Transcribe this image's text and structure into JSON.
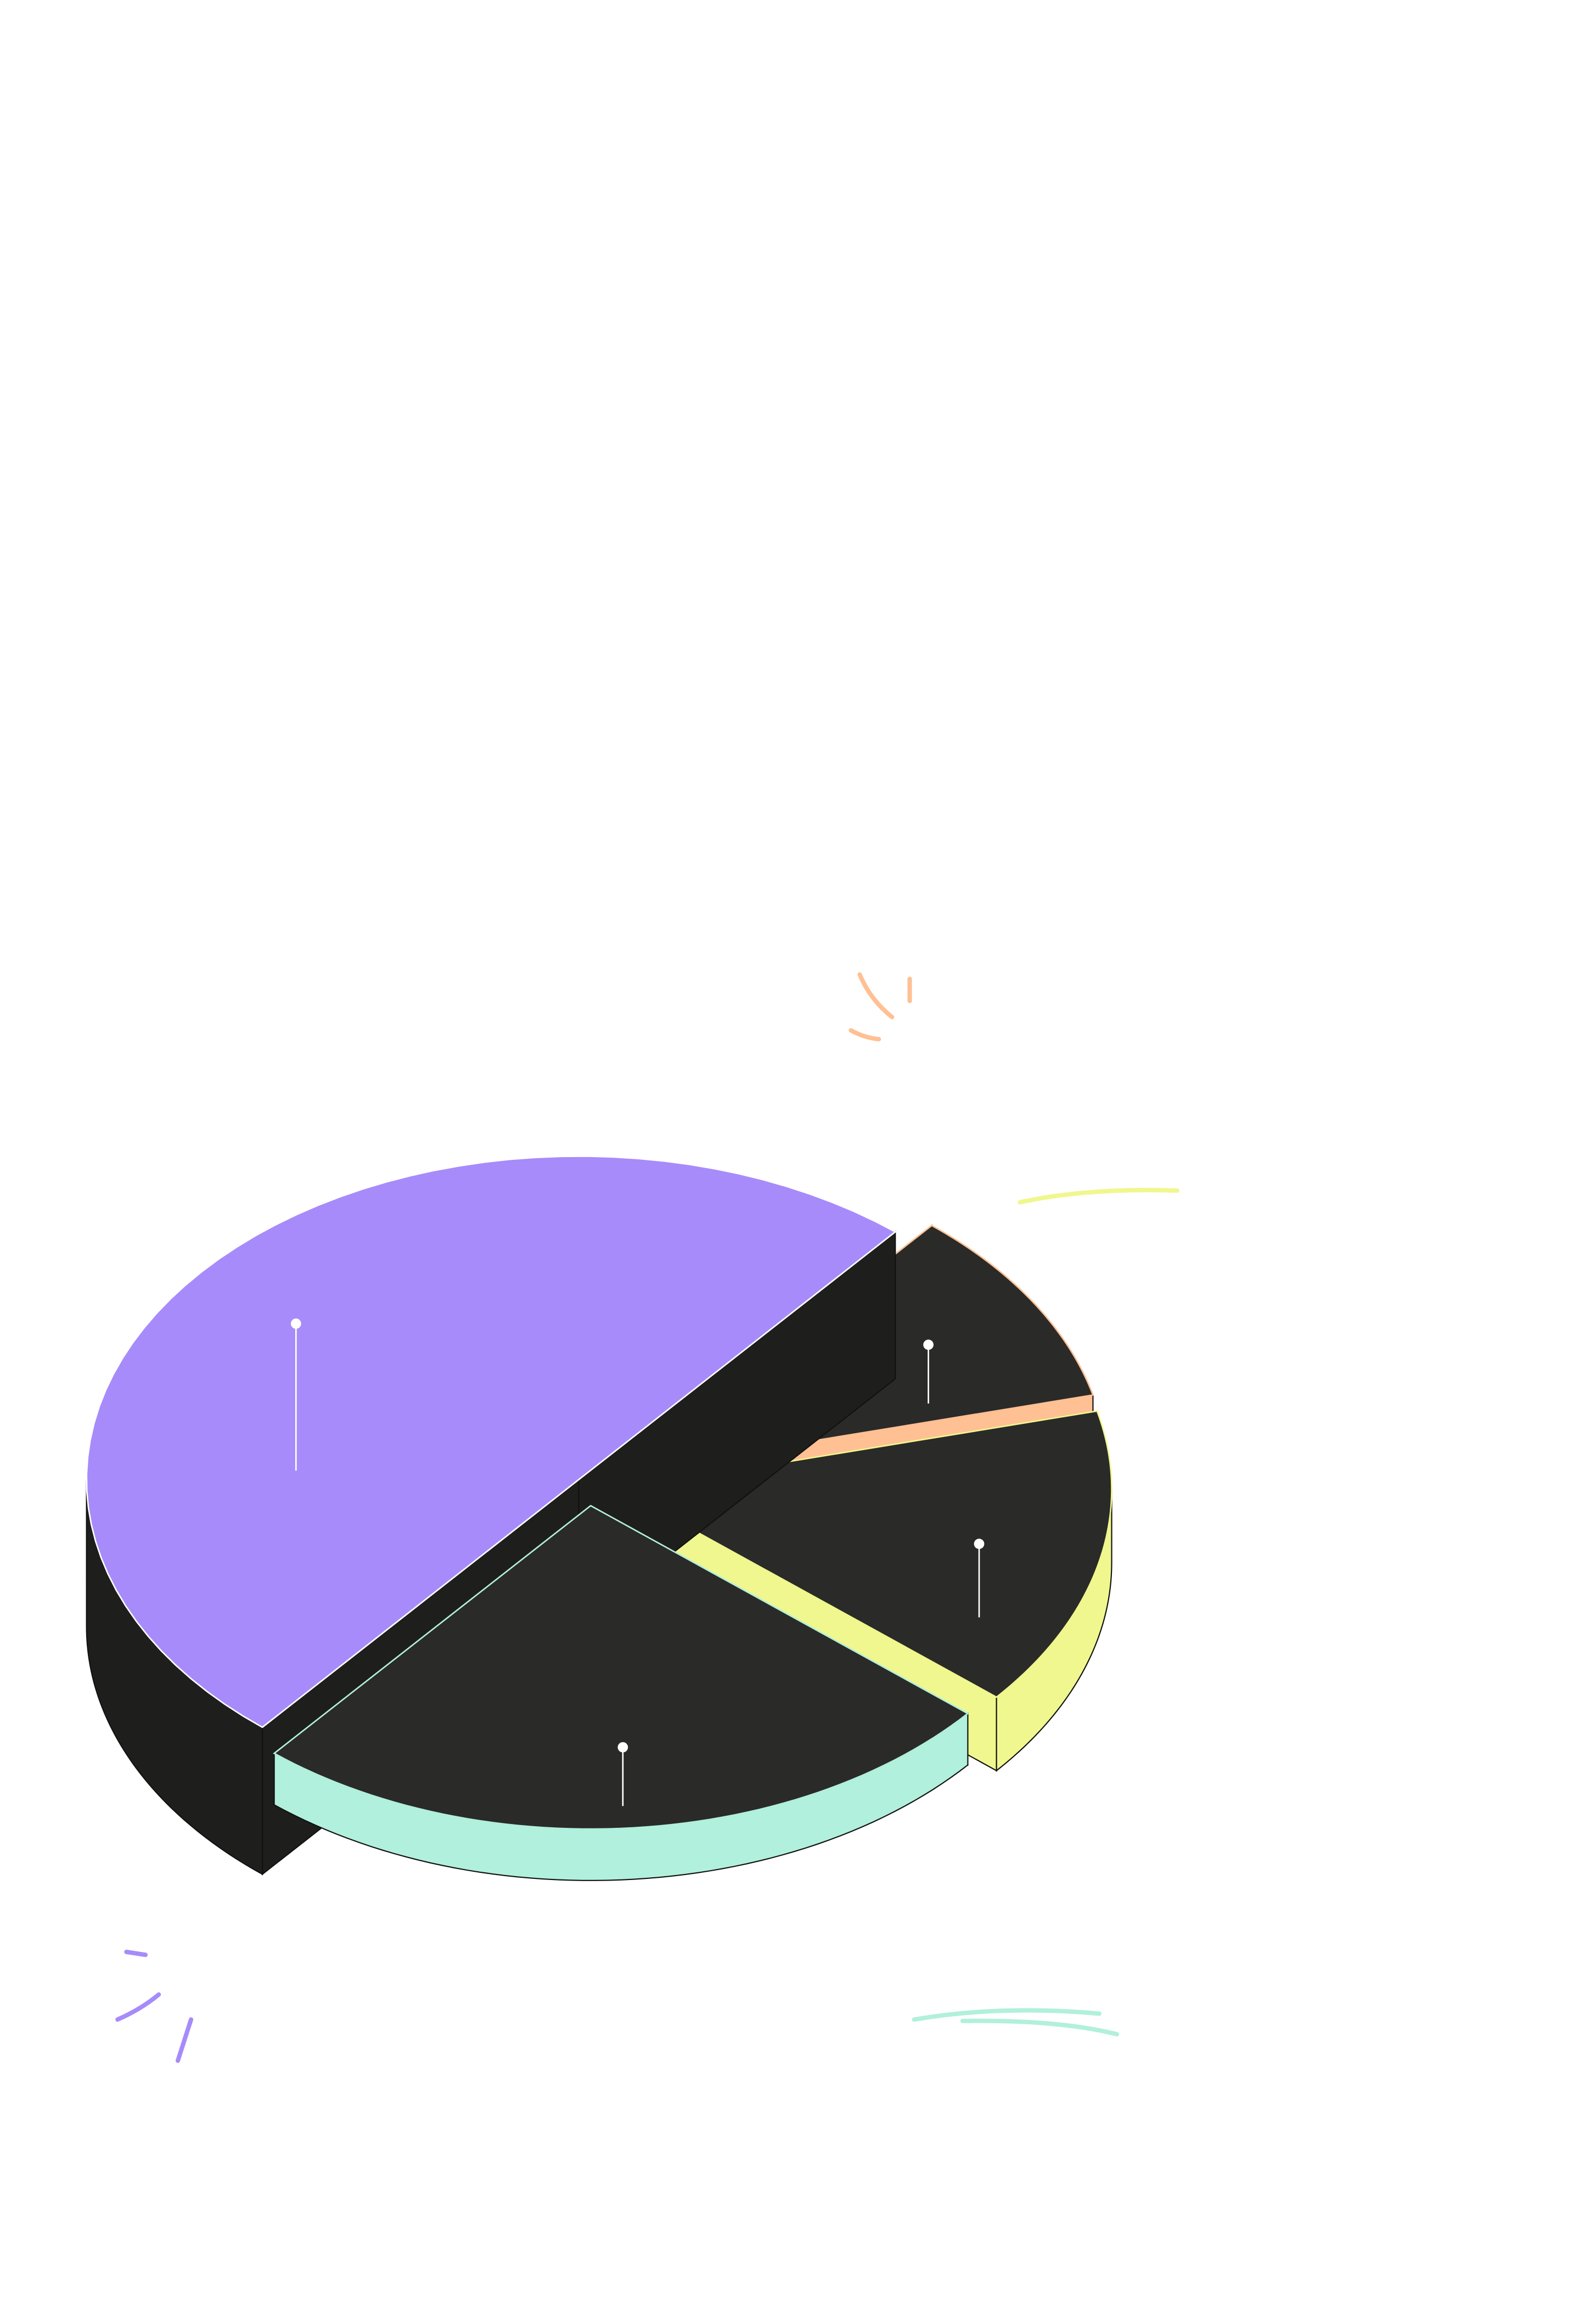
{
  "chart_data": {
    "type": "pie",
    "values": [
      50,
      10,
      15,
      25
    ],
    "colors": [
      "#a78bfa",
      "#ffc093",
      "#f0f78e",
      "#b1f0dc"
    ]
  }
}
